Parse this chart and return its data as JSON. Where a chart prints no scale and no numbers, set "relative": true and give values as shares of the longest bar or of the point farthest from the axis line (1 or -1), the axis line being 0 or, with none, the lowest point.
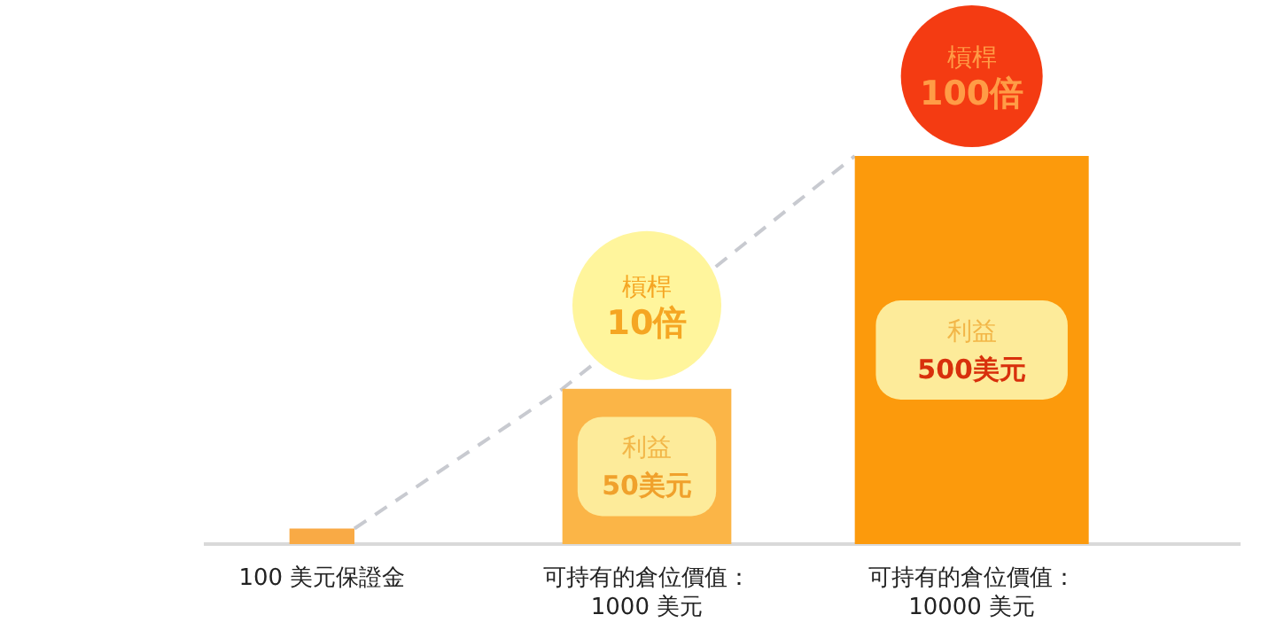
{
  "chart_data": {
    "type": "bar",
    "relative": true,
    "categories": [
      "100 美元保證金",
      "可持有的倉位價值：\n1000 美元",
      "可持有的倉位價值：\n10000 美元"
    ],
    "colors": [
      "#f9aa45",
      "#fbb547",
      "#fc9a0c"
    ],
    "values": [
      0.04,
      0.4,
      1.0
    ],
    "annotations": [
      "槓桿",
      "10倍",
      "槓桿",
      "100倍",
      "利益",
      "50美元",
      "利益",
      "500美元"
    ]
  }
}
